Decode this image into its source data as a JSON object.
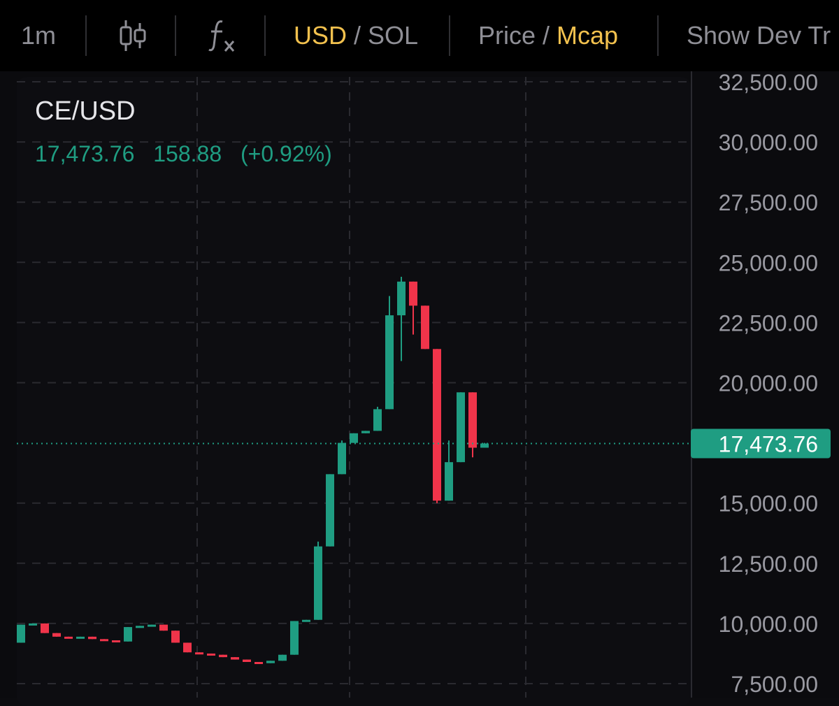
{
  "toolbar": {
    "interval": "1m",
    "currency_active": "USD",
    "currency_sep": "/",
    "currency_other": "SOL",
    "metric_other": "Price",
    "metric_sep": "/",
    "metric_active": "Mcap",
    "dev_toggle": "Show Dev Tr"
  },
  "legend": {
    "symbol": "CE/USD",
    "last": "17,473.76",
    "change": "158.88",
    "change_pct": "(+0.92%)"
  },
  "colors": {
    "up": "#1f9d82",
    "down": "#f0344a",
    "accent": "#f2c14e",
    "price_tag": "#1f9d82"
  },
  "chart_data": {
    "type": "candlestick",
    "title": "CE/USD",
    "y_ticks": [
      "32,500.00",
      "30,000.00",
      "27,500.00",
      "25,000.00",
      "22,500.00",
      "20,000.00",
      "17,473.76",
      "15,000.00",
      "12,500.00",
      "10,000.00",
      "7,500.00"
    ],
    "y_tick_values": [
      32500,
      30000,
      27500,
      25000,
      22500,
      20000,
      15000,
      12500,
      10000,
      7500
    ],
    "ylim": [
      7000,
      32700
    ],
    "last_price": 17473.76,
    "last_price_label": "17,473.76",
    "grid": true,
    "candles": [
      {
        "o": 9200,
        "h": 9950,
        "l": 9200,
        "c": 9950
      },
      {
        "o": 9950,
        "h": 10000,
        "l": 9950,
        "c": 10000
      },
      {
        "o": 10000,
        "h": 10000,
        "l": 9600,
        "c": 9600
      },
      {
        "o": 9600,
        "h": 9600,
        "l": 9450,
        "c": 9450
      },
      {
        "o": 9450,
        "h": 9450,
        "l": 9400,
        "c": 9400
      },
      {
        "o": 9400,
        "h": 9450,
        "l": 9400,
        "c": 9450
      },
      {
        "o": 9450,
        "h": 9450,
        "l": 9350,
        "c": 9350
      },
      {
        "o": 9350,
        "h": 9350,
        "l": 9300,
        "c": 9300
      },
      {
        "o": 9300,
        "h": 9300,
        "l": 9250,
        "c": 9250
      },
      {
        "o": 9250,
        "h": 9850,
        "l": 9250,
        "c": 9850
      },
      {
        "o": 9850,
        "h": 9900,
        "l": 9850,
        "c": 9900
      },
      {
        "o": 9900,
        "h": 9950,
        "l": 9900,
        "c": 9950
      },
      {
        "o": 9950,
        "h": 9950,
        "l": 9700,
        "c": 9700
      },
      {
        "o": 9700,
        "h": 9700,
        "l": 9200,
        "c": 9200
      },
      {
        "o": 9200,
        "h": 9200,
        "l": 8800,
        "c": 8800
      },
      {
        "o": 8800,
        "h": 8800,
        "l": 8750,
        "c": 8750
      },
      {
        "o": 8750,
        "h": 8750,
        "l": 8700,
        "c": 8700
      },
      {
        "o": 8700,
        "h": 8700,
        "l": 8600,
        "c": 8600
      },
      {
        "o": 8600,
        "h": 8600,
        "l": 8500,
        "c": 8500
      },
      {
        "o": 8500,
        "h": 8500,
        "l": 8400,
        "c": 8400
      },
      {
        "o": 8400,
        "h": 8400,
        "l": 8350,
        "c": 8350
      },
      {
        "o": 8350,
        "h": 8450,
        "l": 8350,
        "c": 8450
      },
      {
        "o": 8450,
        "h": 8700,
        "l": 8450,
        "c": 8700
      },
      {
        "o": 8700,
        "h": 10100,
        "l": 8700,
        "c": 10100
      },
      {
        "o": 10100,
        "h": 10150,
        "l": 10100,
        "c": 10150
      },
      {
        "o": 10150,
        "h": 13400,
        "l": 10150,
        "c": 13200
      },
      {
        "o": 13200,
        "h": 16200,
        "l": 13200,
        "c": 16200
      },
      {
        "o": 16200,
        "h": 17600,
        "l": 16200,
        "c": 17500
      },
      {
        "o": 17500,
        "h": 17900,
        "l": 17500,
        "c": 17900
      },
      {
        "o": 17900,
        "h": 18000,
        "l": 17900,
        "c": 18000
      },
      {
        "o": 18000,
        "h": 19000,
        "l": 18000,
        "c": 18900
      },
      {
        "o": 18900,
        "h": 23600,
        "l": 18900,
        "c": 22800
      },
      {
        "o": 22800,
        "h": 24400,
        "l": 20900,
        "c": 24200
      },
      {
        "o": 24200,
        "h": 24200,
        "l": 22000,
        "c": 23200
      },
      {
        "o": 23200,
        "h": 23200,
        "l": 21400,
        "c": 21400
      },
      {
        "o": 21400,
        "h": 21400,
        "l": 15000,
        "c": 15100
      },
      {
        "o": 15100,
        "h": 17600,
        "l": 15100,
        "c": 16700
      },
      {
        "o": 16700,
        "h": 19600,
        "l": 16700,
        "c": 19600
      },
      {
        "o": 19600,
        "h": 19600,
        "l": 16900,
        "c": 17300
      },
      {
        "o": 17300,
        "h": 17500,
        "l": 17300,
        "c": 17474
      }
    ]
  }
}
